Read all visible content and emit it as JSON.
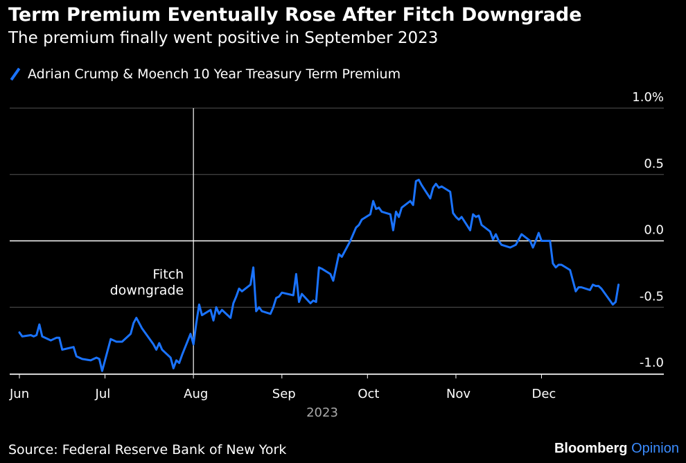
{
  "header": {
    "title": "Term Premium Eventually Rose After Fitch Downgrade",
    "subtitle": "The premium finally went positive in September 2023"
  },
  "legend": {
    "label": "Adrian Crump & Moench 10 Year Treasury Term Premium"
  },
  "footer": {
    "source": "Source: Federal Reserve Bank of New York",
    "brand_main": "Bloomberg",
    "brand_accent": "Opinion"
  },
  "colors": {
    "background": "#000000",
    "line": "#1a73ff",
    "grid": "#555555",
    "text": "#ffffff",
    "brand_accent": "#3b8cff"
  },
  "chart_data": {
    "type": "line",
    "title": "Term Premium Eventually Rose After Fitch Downgrade",
    "subtitle": "The premium finally went positive in September 2023",
    "xlabel": "2023",
    "ylabel": "",
    "ylim": [
      -1.0,
      1.0
    ],
    "y_ticks": [
      {
        "value": 1.0,
        "label": "1.0%"
      },
      {
        "value": 0.5,
        "label": "0.5"
      },
      {
        "value": 0.0,
        "label": "0.0"
      },
      {
        "value": -0.5,
        "label": "-0.5"
      },
      {
        "value": -1.0,
        "label": "-1.0"
      }
    ],
    "x_ticks": [
      {
        "date": "2023-06-01",
        "label": "Jun"
      },
      {
        "date": "2023-07-01",
        "label": "Jul"
      },
      {
        "date": "2023-08-01",
        "label": "Aug"
      },
      {
        "date": "2023-09-01",
        "label": "Sep"
      },
      {
        "date": "2023-10-01",
        "label": "Oct"
      },
      {
        "date": "2023-11-01",
        "label": "Nov"
      },
      {
        "date": "2023-12-01",
        "label": "Dec"
      }
    ],
    "x_range": [
      "2023-06-01",
      "2023-12-31"
    ],
    "grid": true,
    "legend_position": "top-left",
    "annotations": [
      {
        "date": "2023-08-01",
        "text_lines": [
          "Fitch",
          "downgrade"
        ]
      }
    ],
    "series": [
      {
        "name": "Adrian Crump & Moench 10 Year Treasury Term Premium",
        "color": "#1a73ff",
        "points": [
          [
            "2023-06-01",
            -0.69
          ],
          [
            "2023-06-02",
            -0.72
          ],
          [
            "2023-06-05",
            -0.71
          ],
          [
            "2023-06-06",
            -0.72
          ],
          [
            "2023-06-07",
            -0.71
          ],
          [
            "2023-06-08",
            -0.63
          ],
          [
            "2023-06-09",
            -0.72
          ],
          [
            "2023-06-12",
            -0.75
          ],
          [
            "2023-06-13",
            -0.74
          ],
          [
            "2023-06-14",
            -0.73
          ],
          [
            "2023-06-15",
            -0.73
          ],
          [
            "2023-06-16",
            -0.82
          ],
          [
            "2023-06-20",
            -0.8
          ],
          [
            "2023-06-21",
            -0.87
          ],
          [
            "2023-06-22",
            -0.88
          ],
          [
            "2023-06-23",
            -0.89
          ],
          [
            "2023-06-26",
            -0.9
          ],
          [
            "2023-06-27",
            -0.89
          ],
          [
            "2023-06-28",
            -0.88
          ],
          [
            "2023-06-29",
            -0.89
          ],
          [
            "2023-06-30",
            -0.98
          ],
          [
            "2023-07-03",
            -0.74
          ],
          [
            "2023-07-05",
            -0.76
          ],
          [
            "2023-07-06",
            -0.76
          ],
          [
            "2023-07-07",
            -0.76
          ],
          [
            "2023-07-10",
            -0.7
          ],
          [
            "2023-07-11",
            -0.62
          ],
          [
            "2023-07-12",
            -0.58
          ],
          [
            "2023-07-13",
            -0.62
          ],
          [
            "2023-07-14",
            -0.66
          ],
          [
            "2023-07-17",
            -0.75
          ],
          [
            "2023-07-18",
            -0.78
          ],
          [
            "2023-07-19",
            -0.82
          ],
          [
            "2023-07-20",
            -0.77
          ],
          [
            "2023-07-21",
            -0.82
          ],
          [
            "2023-07-24",
            -0.88
          ],
          [
            "2023-07-25",
            -0.96
          ],
          [
            "2023-07-26",
            -0.9
          ],
          [
            "2023-07-27",
            -0.92
          ],
          [
            "2023-07-28",
            -0.86
          ],
          [
            "2023-07-31",
            -0.7
          ],
          [
            "2023-08-01",
            -0.78
          ],
          [
            "2023-08-02",
            -0.62
          ],
          [
            "2023-08-03",
            -0.48
          ],
          [
            "2023-08-04",
            -0.56
          ],
          [
            "2023-08-07",
            -0.52
          ],
          [
            "2023-08-08",
            -0.6
          ],
          [
            "2023-08-09",
            -0.5
          ],
          [
            "2023-08-10",
            -0.55
          ],
          [
            "2023-08-11",
            -0.52
          ],
          [
            "2023-08-14",
            -0.58
          ],
          [
            "2023-08-15",
            -0.47
          ],
          [
            "2023-08-16",
            -0.42
          ],
          [
            "2023-08-17",
            -0.36
          ],
          [
            "2023-08-18",
            -0.38
          ],
          [
            "2023-08-21",
            -0.33
          ],
          [
            "2023-08-22",
            -0.2
          ],
          [
            "2023-08-23",
            -0.53
          ],
          [
            "2023-08-24",
            -0.5
          ],
          [
            "2023-08-25",
            -0.53
          ],
          [
            "2023-08-28",
            -0.55
          ],
          [
            "2023-08-29",
            -0.5
          ],
          [
            "2023-08-30",
            -0.43
          ],
          [
            "2023-08-31",
            -0.42
          ],
          [
            "2023-09-01",
            -0.39
          ],
          [
            "2023-09-05",
            -0.41
          ],
          [
            "2023-09-06",
            -0.25
          ],
          [
            "2023-09-07",
            -0.46
          ],
          [
            "2023-09-08",
            -0.4
          ],
          [
            "2023-09-11",
            -0.47
          ],
          [
            "2023-09-12",
            -0.45
          ],
          [
            "2023-09-13",
            -0.46
          ],
          [
            "2023-09-14",
            -0.2
          ],
          [
            "2023-09-15",
            -0.21
          ],
          [
            "2023-09-18",
            -0.25
          ],
          [
            "2023-09-19",
            -0.3
          ],
          [
            "2023-09-20",
            -0.2
          ],
          [
            "2023-09-21",
            -0.1
          ],
          [
            "2023-09-22",
            -0.12
          ],
          [
            "2023-09-25",
            0.0
          ],
          [
            "2023-09-26",
            0.05
          ],
          [
            "2023-09-27",
            0.1
          ],
          [
            "2023-09-28",
            0.12
          ],
          [
            "2023-09-29",
            0.16
          ],
          [
            "2023-10-02",
            0.2
          ],
          [
            "2023-10-03",
            0.3
          ],
          [
            "2023-10-04",
            0.24
          ],
          [
            "2023-10-05",
            0.25
          ],
          [
            "2023-10-06",
            0.22
          ],
          [
            "2023-10-09",
            0.2
          ],
          [
            "2023-10-10",
            0.08
          ],
          [
            "2023-10-11",
            0.22
          ],
          [
            "2023-10-12",
            0.18
          ],
          [
            "2023-10-13",
            0.25
          ],
          [
            "2023-10-16",
            0.3
          ],
          [
            "2023-10-17",
            0.27
          ],
          [
            "2023-10-18",
            0.45
          ],
          [
            "2023-10-19",
            0.46
          ],
          [
            "2023-10-20",
            0.42
          ],
          [
            "2023-10-23",
            0.32
          ],
          [
            "2023-10-24",
            0.4
          ],
          [
            "2023-10-25",
            0.43
          ],
          [
            "2023-10-26",
            0.4
          ],
          [
            "2023-10-27",
            0.41
          ],
          [
            "2023-10-30",
            0.37
          ],
          [
            "2023-10-31",
            0.21
          ],
          [
            "2023-11-01",
            0.18
          ],
          [
            "2023-11-02",
            0.16
          ],
          [
            "2023-11-03",
            0.18
          ],
          [
            "2023-11-06",
            0.08
          ],
          [
            "2023-11-07",
            0.2
          ],
          [
            "2023-11-08",
            0.18
          ],
          [
            "2023-11-09",
            0.19
          ],
          [
            "2023-11-10",
            0.12
          ],
          [
            "2023-11-13",
            0.07
          ],
          [
            "2023-11-14",
            0.01
          ],
          [
            "2023-11-15",
            0.05
          ],
          [
            "2023-11-16",
            0.0
          ],
          [
            "2023-11-17",
            -0.03
          ],
          [
            "2023-11-20",
            -0.05
          ],
          [
            "2023-11-21",
            -0.04
          ],
          [
            "2023-11-22",
            -0.03
          ],
          [
            "2023-11-24",
            0.05
          ],
          [
            "2023-11-27",
            0.0
          ],
          [
            "2023-11-28",
            -0.05
          ],
          [
            "2023-11-29",
            0.0
          ],
          [
            "2023-11-30",
            0.06
          ],
          [
            "2023-12-01",
            0.0
          ],
          [
            "2023-12-04",
            0.0
          ],
          [
            "2023-12-05",
            -0.17
          ],
          [
            "2023-12-06",
            -0.2
          ],
          [
            "2023-12-07",
            -0.18
          ],
          [
            "2023-12-08",
            -0.18
          ],
          [
            "2023-12-11",
            -0.22
          ],
          [
            "2023-12-12",
            -0.3
          ],
          [
            "2023-12-13",
            -0.38
          ],
          [
            "2023-12-14",
            -0.35
          ],
          [
            "2023-12-15",
            -0.35
          ],
          [
            "2023-12-18",
            -0.37
          ],
          [
            "2023-12-19",
            -0.33
          ],
          [
            "2023-12-20",
            -0.34
          ],
          [
            "2023-12-21",
            -0.34
          ],
          [
            "2023-12-22",
            -0.36
          ],
          [
            "2023-12-26",
            -0.48
          ],
          [
            "2023-12-27",
            -0.46
          ],
          [
            "2023-12-28",
            -0.33
          ]
        ]
      }
    ]
  }
}
